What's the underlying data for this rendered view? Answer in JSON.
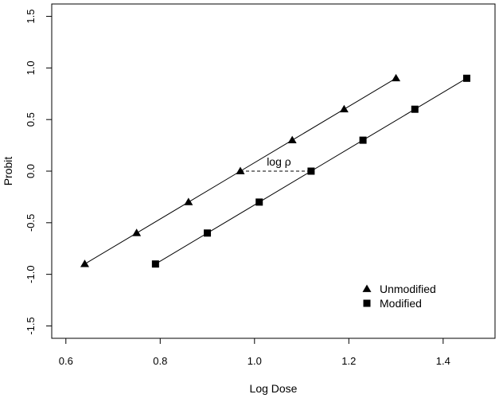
{
  "chart_data": {
    "type": "line",
    "title": "",
    "xlabel": "Log Dose",
    "ylabel": "Probit",
    "xlim": [
      0.57,
      1.51
    ],
    "ylim": [
      -1.62,
      1.62
    ],
    "x_ticks": [
      0.6,
      0.8,
      1.0,
      1.2,
      1.4
    ],
    "x_tick_labels": [
      "0.6",
      "0.8",
      "1.0",
      "1.2",
      "1.4"
    ],
    "y_ticks": [
      -1.5,
      -1.0,
      -0.5,
      0.0,
      0.5,
      1.0,
      1.5
    ],
    "y_tick_labels": [
      "-1.5",
      "-1.0",
      "-0.5",
      "0.0",
      "0.5",
      "1.0",
      "1.5"
    ],
    "grid": false,
    "legend_position": "bottom-right",
    "series": [
      {
        "name": "Unmodified",
        "marker": "triangle",
        "color": "#000000",
        "x": [
          0.64,
          0.75,
          0.86,
          0.97,
          1.08,
          1.19,
          1.3
        ],
        "y": [
          -0.9,
          -0.6,
          -0.3,
          0.0,
          0.3,
          0.6,
          0.9
        ]
      },
      {
        "name": "Modified",
        "marker": "square",
        "color": "#000000",
        "x": [
          0.79,
          0.9,
          1.01,
          1.12,
          1.23,
          1.34,
          1.45
        ],
        "y": [
          -0.9,
          -0.6,
          -0.3,
          0.0,
          0.3,
          0.6,
          0.9
        ]
      }
    ],
    "annotation": {
      "text": "log ρ",
      "x1": 0.97,
      "x2": 1.12,
      "y": 0.0,
      "style": "dashed"
    }
  }
}
